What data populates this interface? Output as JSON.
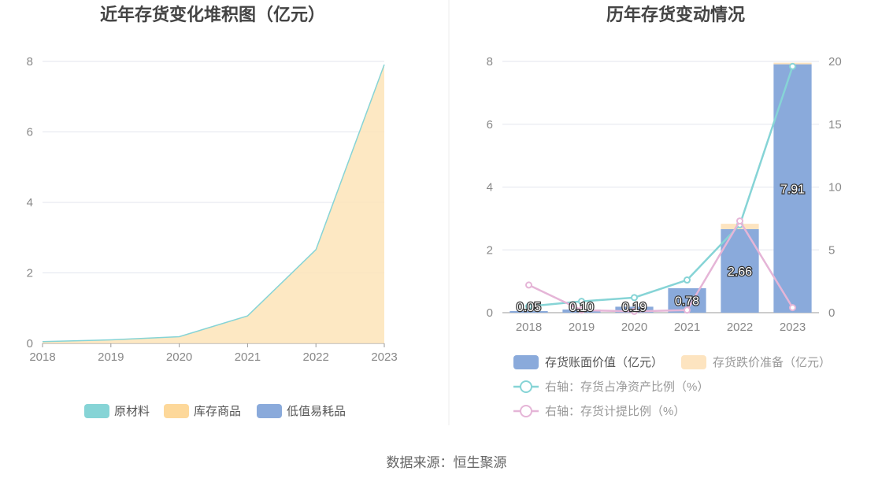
{
  "source_text": "数据来源：恒生聚源",
  "colors": {
    "raw_material": "#86d4d6",
    "finished_goods": "#fdd89a",
    "finished_goods_fill": "#fde4b8",
    "low_value": "#8aaadb",
    "book_value": "#8aaadb",
    "impairment": "#fde4c0",
    "ratio_net_assets": "#86d4d6",
    "ratio_impairment": "#e5b5d7",
    "grid": "#e3e6ee",
    "axis": "#999999"
  },
  "chart_data": [
    {
      "type": "area",
      "title": "近年存货变化堆积图（亿元）",
      "categories": [
        "2018",
        "2019",
        "2020",
        "2021",
        "2022",
        "2023"
      ],
      "ylim": [
        0,
        8
      ],
      "yticks": [
        "0",
        "2",
        "4",
        "6",
        "8"
      ],
      "stacked": true,
      "grid": true,
      "legend_position": "bottom",
      "series": [
        {
          "name": "原材料",
          "values": [
            0.0,
            0.0,
            0.0,
            0.0,
            0.0,
            0.0
          ]
        },
        {
          "name": "库存商品",
          "values": [
            0.05,
            0.1,
            0.19,
            0.78,
            2.66,
            7.91
          ]
        },
        {
          "name": "低值易耗品",
          "values": [
            0.0,
            0.0,
            0.0,
            0.0,
            0.0,
            0.0
          ]
        }
      ]
    },
    {
      "type": "bar",
      "title": "历年存货变动情况",
      "categories": [
        "2018",
        "2019",
        "2020",
        "2021",
        "2022",
        "2023"
      ],
      "ylim": [
        0,
        8
      ],
      "yticks": [
        "0",
        "2",
        "4",
        "6",
        "8"
      ],
      "y2lim": [
        0,
        20
      ],
      "y2ticks": [
        "0",
        "5",
        "10",
        "15",
        "20"
      ],
      "grid": true,
      "legend_position": "bottom",
      "bar_labels": [
        "0.05",
        "0.10",
        "0.19",
        "0.78",
        "2.66",
        "7.91"
      ],
      "series": [
        {
          "name": "存货账面价值（亿元）",
          "kind": "bar",
          "stack": "inv",
          "values": [
            0.05,
            0.1,
            0.19,
            0.78,
            2.66,
            7.91
          ]
        },
        {
          "name": "存货跌价准备（亿元）",
          "kind": "bar",
          "stack": "inv",
          "values": [
            0.0,
            0.0,
            0.0,
            0.0,
            0.17,
            0.05
          ]
        },
        {
          "name": "右轴：存货占净资产比例（%）",
          "kind": "line",
          "axis": "right",
          "values": [
            0.5,
            0.9,
            1.2,
            2.6,
            7.0,
            19.6
          ]
        },
        {
          "name": "右轴：存货计提比例（%）",
          "kind": "line",
          "axis": "right",
          "values": [
            2.2,
            0.2,
            0.1,
            0.2,
            7.3,
            0.4
          ]
        }
      ]
    }
  ]
}
